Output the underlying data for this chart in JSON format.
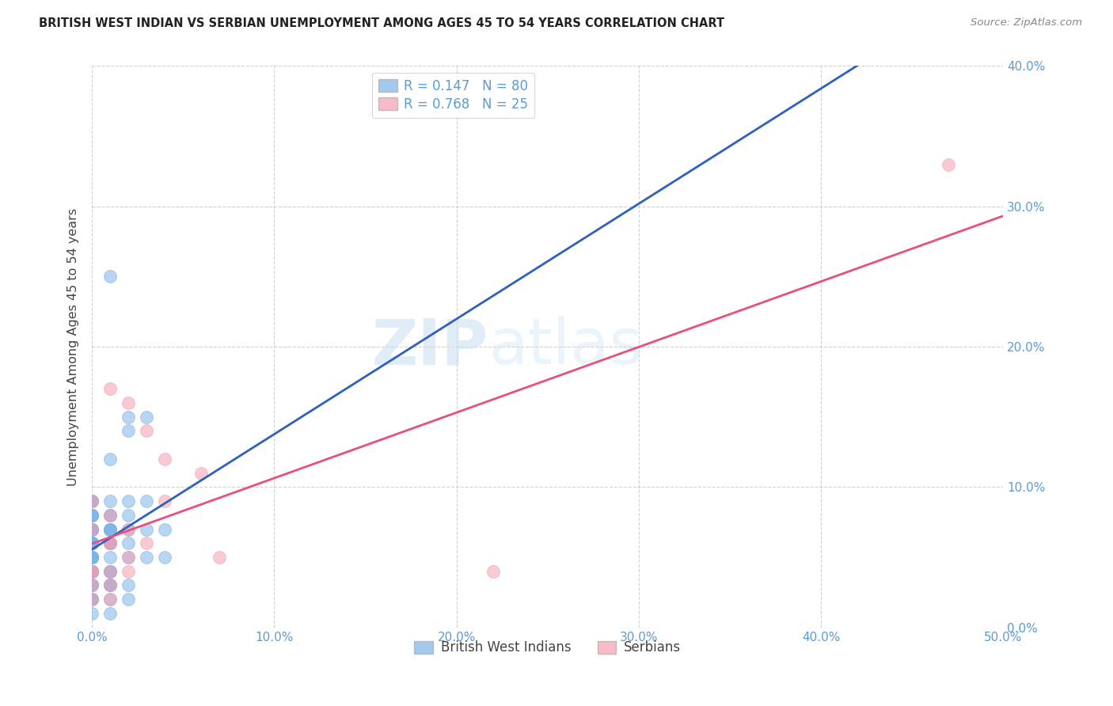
{
  "title": "BRITISH WEST INDIAN VS SERBIAN UNEMPLOYMENT AMONG AGES 45 TO 54 YEARS CORRELATION CHART",
  "source": "Source: ZipAtlas.com",
  "ylabel": "Unemployment Among Ages 45 to 54 years",
  "xlim": [
    0.0,
    0.5
  ],
  "ylim": [
    0.0,
    0.4
  ],
  "xticks": [
    0.0,
    0.1,
    0.2,
    0.3,
    0.4,
    0.5
  ],
  "yticks": [
    0.0,
    0.1,
    0.2,
    0.3,
    0.4
  ],
  "grid_color": "#cccccc",
  "background_color": "#ffffff",
  "watermark_zip": "ZIP",
  "watermark_atlas": "atlas",
  "legend_r1": "R = 0.147",
  "legend_n1": "N = 80",
  "legend_r2": "R = 0.768",
  "legend_n2": "N = 25",
  "blue_color": "#7eb3e8",
  "pink_color": "#f4a0b0",
  "trend_blue_solid": "#3060c0",
  "trend_blue_dash": "#7eb3e8",
  "trend_pink": "#e8507a",
  "tick_color": "#5b9bd5",
  "blue_label": "British West Indians",
  "pink_label": "Serbians",
  "bwi_x": [
    0.01,
    0.02,
    0.03,
    0.02,
    0.01,
    0.0,
    0.0,
    0.01,
    0.0,
    0.02,
    0.03,
    0.0,
    0.01,
    0.0,
    0.02,
    0.01,
    0.0,
    0.0,
    0.0,
    0.0,
    0.02,
    0.01,
    0.0,
    0.0,
    0.0,
    0.0,
    0.01,
    0.01,
    0.03,
    0.04,
    0.0,
    0.01,
    0.0,
    0.01,
    0.01,
    0.0,
    0.0,
    0.01,
    0.02,
    0.0,
    0.0,
    0.0,
    0.01,
    0.0,
    0.0,
    0.0,
    0.0,
    0.01,
    0.0,
    0.02,
    0.03,
    0.04,
    0.0,
    0.0,
    0.0,
    0.0,
    0.01,
    0.0,
    0.0,
    0.0,
    0.0,
    0.0,
    0.0,
    0.0,
    0.01,
    0.01,
    0.01,
    0.0,
    0.02,
    0.0,
    0.0,
    0.01,
    0.01,
    0.0,
    0.0,
    0.0,
    0.01,
    0.02,
    0.01,
    0.0
  ],
  "bwi_y": [
    0.25,
    0.15,
    0.15,
    0.14,
    0.12,
    0.09,
    0.09,
    0.09,
    0.09,
    0.09,
    0.09,
    0.08,
    0.08,
    0.08,
    0.08,
    0.08,
    0.08,
    0.08,
    0.07,
    0.07,
    0.07,
    0.07,
    0.07,
    0.07,
    0.07,
    0.07,
    0.07,
    0.07,
    0.07,
    0.07,
    0.07,
    0.07,
    0.06,
    0.06,
    0.06,
    0.06,
    0.06,
    0.06,
    0.06,
    0.06,
    0.06,
    0.06,
    0.06,
    0.06,
    0.06,
    0.05,
    0.05,
    0.05,
    0.05,
    0.05,
    0.05,
    0.05,
    0.05,
    0.05,
    0.05,
    0.04,
    0.04,
    0.04,
    0.04,
    0.04,
    0.04,
    0.04,
    0.04,
    0.04,
    0.04,
    0.04,
    0.03,
    0.03,
    0.03,
    0.03,
    0.03,
    0.03,
    0.03,
    0.02,
    0.02,
    0.02,
    0.02,
    0.02,
    0.01,
    0.01
  ],
  "serb_x": [
    0.47,
    0.01,
    0.02,
    0.03,
    0.04,
    0.06,
    0.04,
    0.0,
    0.01,
    0.0,
    0.02,
    0.01,
    0.01,
    0.03,
    0.02,
    0.07,
    0.0,
    0.01,
    0.0,
    0.22,
    0.02,
    0.01,
    0.0,
    0.01,
    0.0
  ],
  "serb_y": [
    0.33,
    0.17,
    0.16,
    0.14,
    0.12,
    0.11,
    0.09,
    0.09,
    0.08,
    0.07,
    0.07,
    0.06,
    0.06,
    0.06,
    0.05,
    0.05,
    0.04,
    0.04,
    0.04,
    0.04,
    0.04,
    0.03,
    0.03,
    0.02,
    0.02
  ]
}
